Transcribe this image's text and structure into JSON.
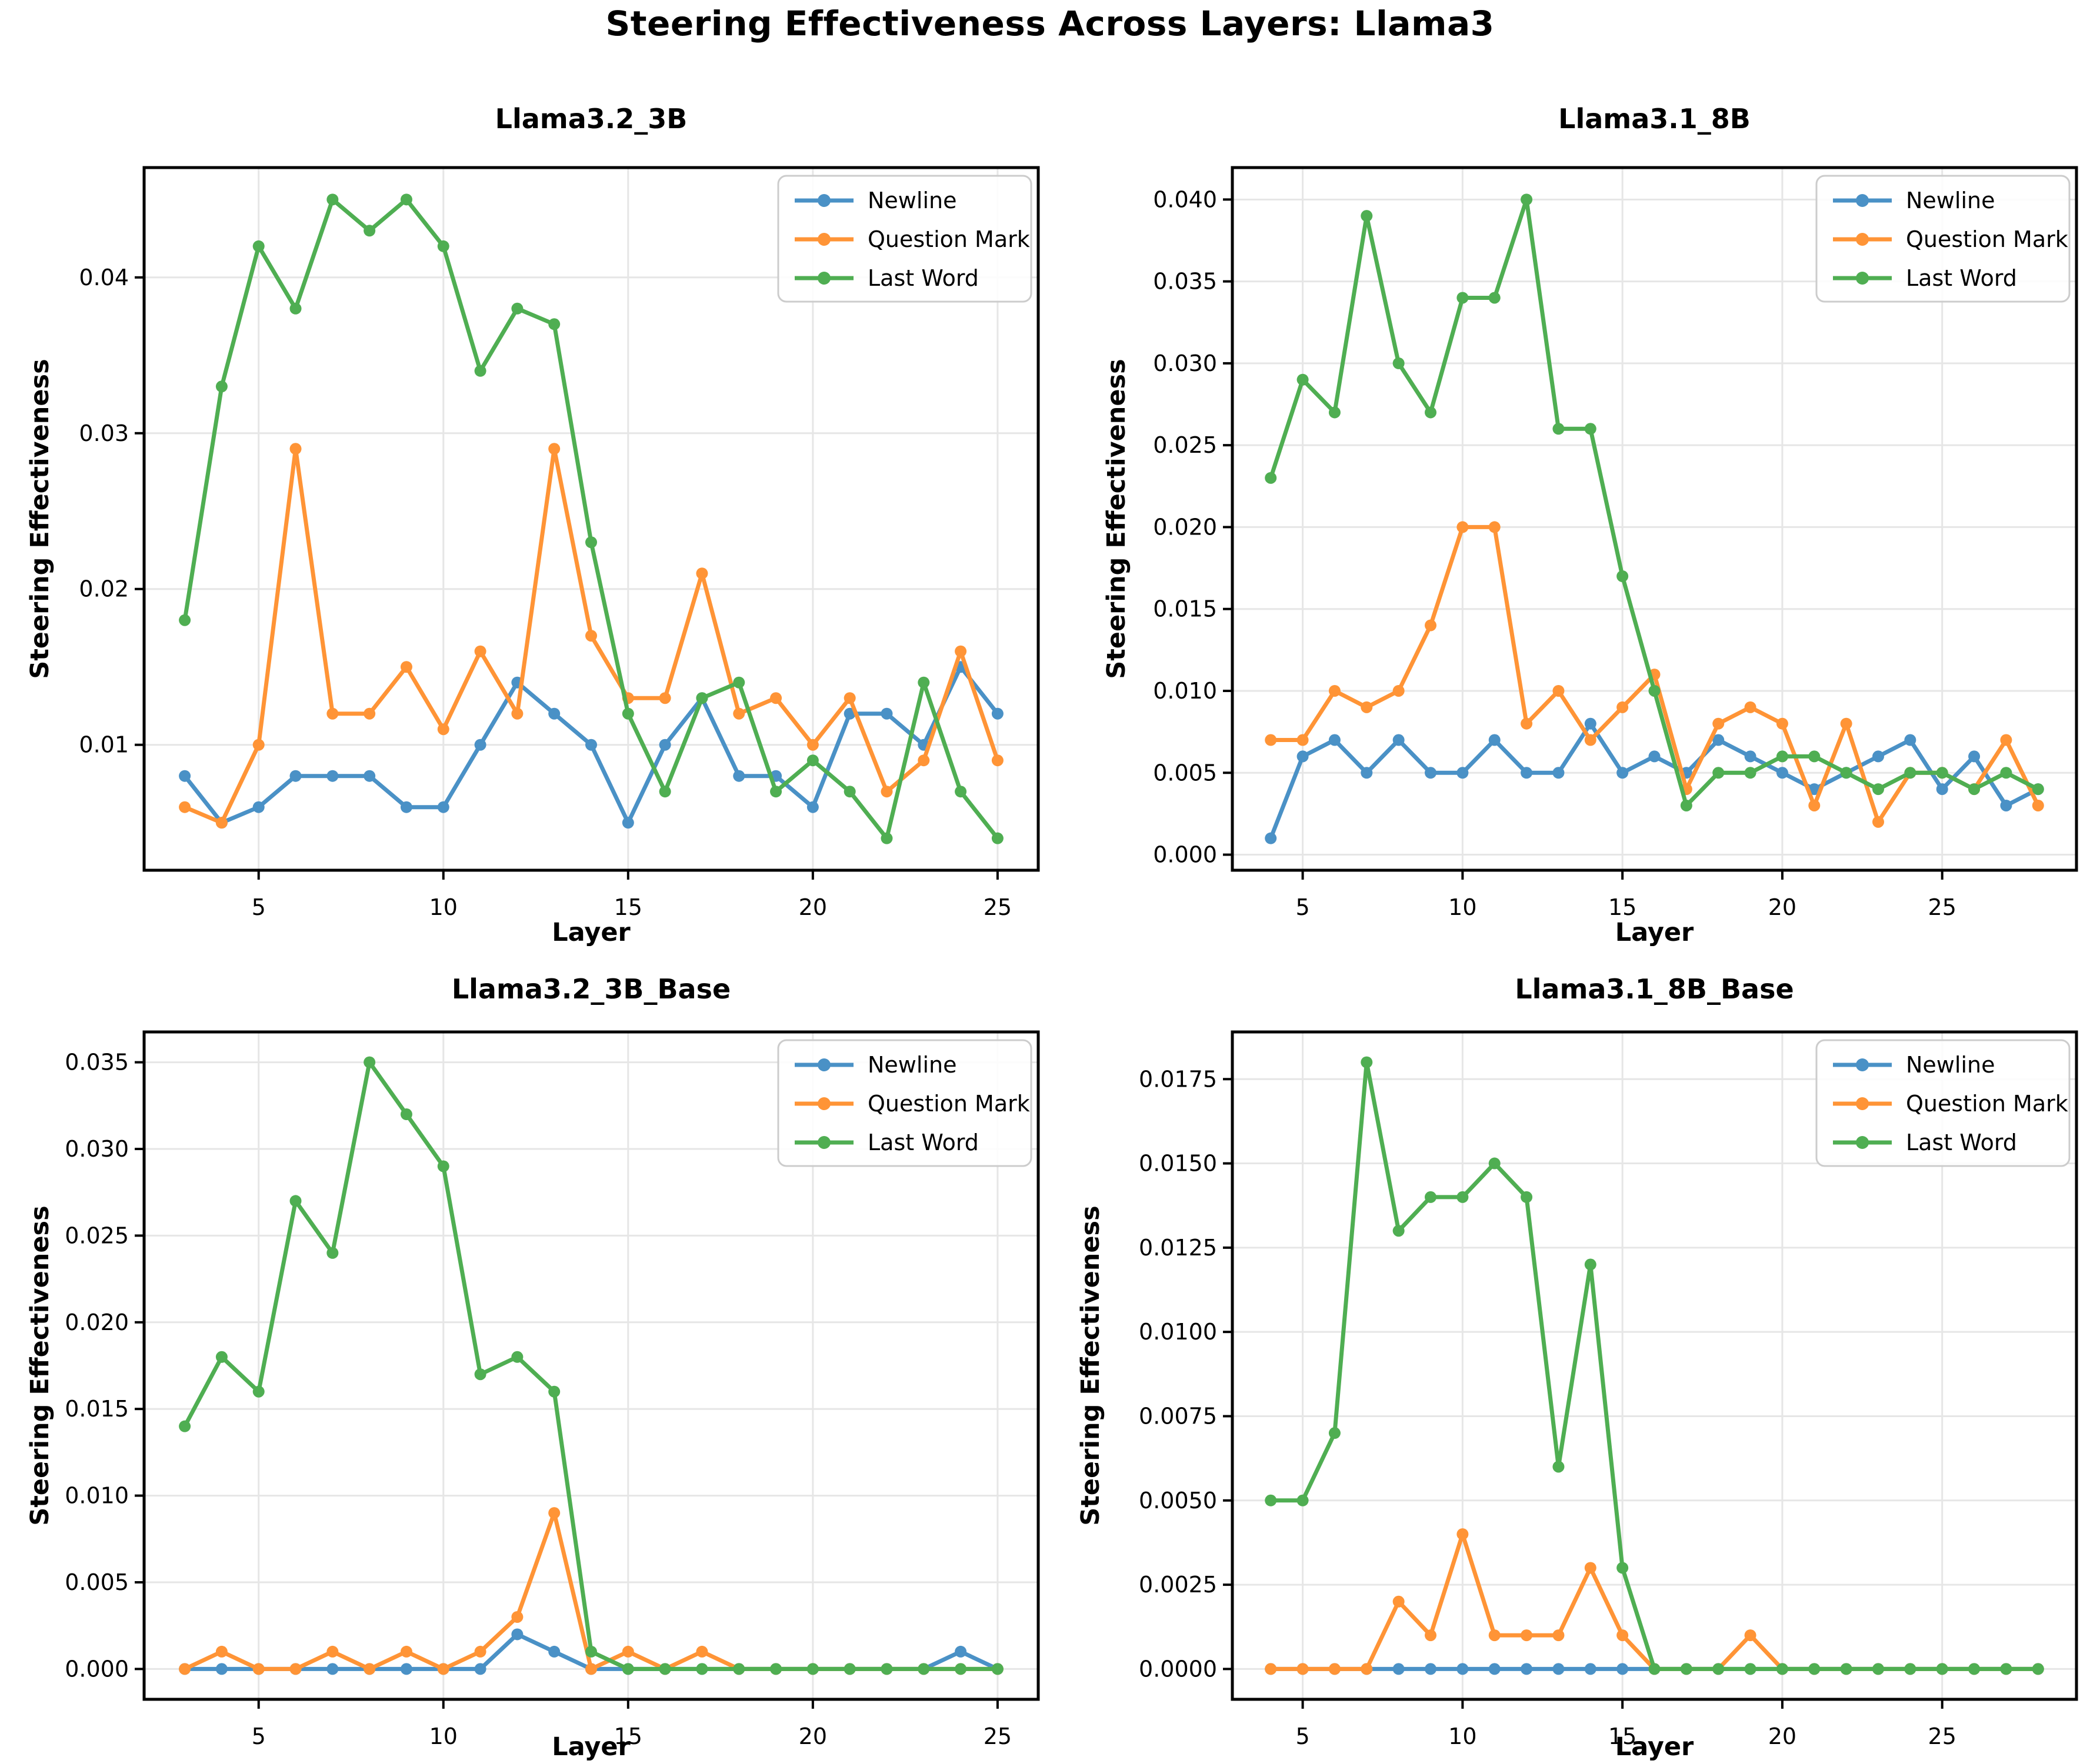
{
  "title": "Steering Effectiveness Across Layers: Llama3",
  "colors": {
    "newline": "#4a91c6",
    "question_mark": "#ff9436",
    "last_word": "#4fae52",
    "grid": "#e6e6e6",
    "spine": "#000000",
    "legend_border": "#cccccc"
  },
  "legend": {
    "position": "upper right",
    "entries": [
      "Newline",
      "Question Mark",
      "Last Word"
    ]
  },
  "chart_data": [
    {
      "type": "line",
      "title": "Llama3.2_3B",
      "xlabel": "Layer",
      "ylabel": "Steering Effectiveness",
      "grid": true,
      "x": [
        3,
        4,
        5,
        6,
        7,
        8,
        9,
        10,
        11,
        12,
        13,
        14,
        15,
        16,
        17,
        18,
        19,
        20,
        21,
        22,
        23,
        24,
        25
      ],
      "xlim": [
        1.9,
        26.1
      ],
      "ylim": [
        0.00195,
        0.04705
      ],
      "xticks": [
        {
          "value": 5,
          "label": "5"
        },
        {
          "value": 10,
          "label": "10"
        },
        {
          "value": 15,
          "label": "15"
        },
        {
          "value": 20,
          "label": "20"
        },
        {
          "value": 25,
          "label": "25"
        }
      ],
      "yticks": [
        {
          "value": 0.01,
          "label": "0.01"
        },
        {
          "value": 0.02,
          "label": "0.02"
        },
        {
          "value": 0.03,
          "label": "0.03"
        },
        {
          "value": 0.04,
          "label": "0.04"
        }
      ],
      "series": [
        {
          "name": "Newline",
          "color": "#4a91c6",
          "values": [
            0.008,
            0.005,
            0.006,
            0.008,
            0.008,
            0.008,
            0.006,
            0.006,
            0.01,
            0.014,
            0.012,
            0.01,
            0.005,
            0.01,
            0.013,
            0.008,
            0.008,
            0.006,
            0.012,
            0.012,
            0.01,
            0.015,
            0.012
          ]
        },
        {
          "name": "Question Mark",
          "color": "#ff9436",
          "values": [
            0.006,
            0.005,
            0.01,
            0.029,
            0.012,
            0.012,
            0.015,
            0.011,
            0.016,
            0.012,
            0.029,
            0.017,
            0.013,
            0.013,
            0.021,
            0.012,
            0.013,
            0.01,
            0.013,
            0.007,
            0.009,
            0.016,
            0.009
          ]
        },
        {
          "name": "Last Word",
          "color": "#4fae52",
          "values": [
            0.018,
            0.033,
            0.042,
            0.038,
            0.045,
            0.043,
            0.045,
            0.042,
            0.034,
            0.038,
            0.037,
            0.023,
            0.012,
            0.007,
            0.013,
            0.014,
            0.007,
            0.009,
            0.007,
            0.004,
            0.014,
            0.007,
            0.004
          ]
        }
      ]
    },
    {
      "type": "line",
      "title": "Llama3.1_8B",
      "xlabel": "Layer",
      "ylabel": "Steering Effectiveness",
      "grid": true,
      "x": [
        4,
        5,
        6,
        7,
        8,
        9,
        10,
        11,
        12,
        13,
        14,
        15,
        16,
        17,
        18,
        19,
        20,
        21,
        22,
        23,
        24,
        25,
        26,
        27,
        28
      ],
      "xlim": [
        2.8,
        29.2
      ],
      "ylim": [
        -0.00095,
        0.04195
      ],
      "xticks": [
        {
          "value": 5,
          "label": "5"
        },
        {
          "value": 10,
          "label": "10"
        },
        {
          "value": 15,
          "label": "15"
        },
        {
          "value": 20,
          "label": "20"
        },
        {
          "value": 25,
          "label": "25"
        }
      ],
      "yticks": [
        {
          "value": 0.0,
          "label": "0.000"
        },
        {
          "value": 0.005,
          "label": "0.005"
        },
        {
          "value": 0.01,
          "label": "0.010"
        },
        {
          "value": 0.015,
          "label": "0.015"
        },
        {
          "value": 0.02,
          "label": "0.020"
        },
        {
          "value": 0.025,
          "label": "0.025"
        },
        {
          "value": 0.03,
          "label": "0.030"
        },
        {
          "value": 0.035,
          "label": "0.035"
        },
        {
          "value": 0.04,
          "label": "0.040"
        }
      ],
      "series": [
        {
          "name": "Newline",
          "color": "#4a91c6",
          "values": [
            0.001,
            0.006,
            0.007,
            0.005,
            0.007,
            0.005,
            0.005,
            0.007,
            0.005,
            0.005,
            0.008,
            0.005,
            0.006,
            0.005,
            0.007,
            0.006,
            0.005,
            0.004,
            0.005,
            0.006,
            0.007,
            0.004,
            0.006,
            0.003,
            0.004
          ]
        },
        {
          "name": "Question Mark",
          "color": "#ff9436",
          "values": [
            0.007,
            0.007,
            0.01,
            0.009,
            0.01,
            0.014,
            0.02,
            0.02,
            0.008,
            0.01,
            0.007,
            0.009,
            0.011,
            0.004,
            0.008,
            0.009,
            0.008,
            0.003,
            0.008,
            0.002,
            0.005,
            0.005,
            0.004,
            0.007,
            0.003
          ]
        },
        {
          "name": "Last Word",
          "color": "#4fae52",
          "values": [
            0.023,
            0.029,
            0.027,
            0.039,
            0.03,
            0.027,
            0.034,
            0.034,
            0.04,
            0.026,
            0.026,
            0.017,
            0.01,
            0.003,
            0.005,
            0.005,
            0.006,
            0.006,
            0.005,
            0.004,
            0.005,
            0.005,
            0.004,
            0.005,
            0.004
          ]
        }
      ]
    },
    {
      "type": "line",
      "title": "Llama3.2_3B_Base",
      "xlabel": "Layer",
      "ylabel": "Steering Effectiveness",
      "grid": true,
      "x": [
        3,
        4,
        5,
        6,
        7,
        8,
        9,
        10,
        11,
        12,
        13,
        14,
        15,
        16,
        17,
        18,
        19,
        20,
        21,
        22,
        23,
        24,
        25
      ],
      "xlim": [
        1.9,
        26.1
      ],
      "ylim": [
        -0.00175,
        0.03675
      ],
      "xticks": [
        {
          "value": 5,
          "label": "5"
        },
        {
          "value": 10,
          "label": "10"
        },
        {
          "value": 15,
          "label": "15"
        },
        {
          "value": 20,
          "label": "20"
        },
        {
          "value": 25,
          "label": "25"
        }
      ],
      "yticks": [
        {
          "value": 0.0,
          "label": "0.000"
        },
        {
          "value": 0.005,
          "label": "0.005"
        },
        {
          "value": 0.01,
          "label": "0.010"
        },
        {
          "value": 0.015,
          "label": "0.015"
        },
        {
          "value": 0.02,
          "label": "0.020"
        },
        {
          "value": 0.025,
          "label": "0.025"
        },
        {
          "value": 0.03,
          "label": "0.030"
        },
        {
          "value": 0.035,
          "label": "0.035"
        }
      ],
      "series": [
        {
          "name": "Newline",
          "color": "#4a91c6",
          "values": [
            0.0,
            0.0,
            0.0,
            0.0,
            0.0,
            0.0,
            0.0,
            0.0,
            0.0,
            0.002,
            0.001,
            0.0,
            0.0,
            0.0,
            0.0,
            0.0,
            0.0,
            0.0,
            0.0,
            0.0,
            0.0,
            0.001,
            0.0
          ]
        },
        {
          "name": "Question Mark",
          "color": "#ff9436",
          "values": [
            0.0,
            0.001,
            0.0,
            0.0,
            0.001,
            0.0,
            0.001,
            0.0,
            0.001,
            0.003,
            0.009,
            0.0,
            0.001,
            0.0,
            0.001,
            0.0,
            0.0,
            0.0,
            0.0,
            0.0,
            0.0,
            0.0,
            0.0
          ]
        },
        {
          "name": "Last Word",
          "color": "#4fae52",
          "values": [
            0.014,
            0.018,
            0.016,
            0.027,
            0.024,
            0.035,
            0.032,
            0.029,
            0.017,
            0.018,
            0.016,
            0.001,
            0.0,
            0.0,
            0.0,
            0.0,
            0.0,
            0.0,
            0.0,
            0.0,
            0.0,
            0.0,
            0.0
          ]
        }
      ]
    },
    {
      "type": "line",
      "title": "Llama3.1_8B_Base",
      "xlabel": "Layer",
      "ylabel": "Steering Effectiveness",
      "grid": true,
      "x": [
        4,
        5,
        6,
        7,
        8,
        9,
        10,
        11,
        12,
        13,
        14,
        15,
        16,
        17,
        18,
        19,
        20,
        21,
        22,
        23,
        24,
        25,
        26,
        27,
        28
      ],
      "xlim": [
        2.8,
        29.2
      ],
      "ylim": [
        -0.0009,
        0.0189
      ],
      "xticks": [
        {
          "value": 5,
          "label": "5"
        },
        {
          "value": 10,
          "label": "10"
        },
        {
          "value": 15,
          "label": "15"
        },
        {
          "value": 20,
          "label": "20"
        },
        {
          "value": 25,
          "label": "25"
        }
      ],
      "yticks": [
        {
          "value": 0.0,
          "label": "0.0000"
        },
        {
          "value": 0.0025,
          "label": "0.0025"
        },
        {
          "value": 0.005,
          "label": "0.0050"
        },
        {
          "value": 0.0075,
          "label": "0.0075"
        },
        {
          "value": 0.01,
          "label": "0.0100"
        },
        {
          "value": 0.0125,
          "label": "0.0125"
        },
        {
          "value": 0.015,
          "label": "0.0150"
        },
        {
          "value": 0.0175,
          "label": "0.0175"
        }
      ],
      "series": [
        {
          "name": "Newline",
          "color": "#4a91c6",
          "values": [
            0.0,
            0.0,
            0.0,
            0.0,
            0.0,
            0.0,
            0.0,
            0.0,
            0.0,
            0.0,
            0.0,
            0.0,
            0.0,
            0.0,
            0.0,
            0.0,
            0.0,
            0.0,
            0.0,
            0.0,
            0.0,
            0.0,
            0.0,
            0.0,
            0.0
          ]
        },
        {
          "name": "Question Mark",
          "color": "#ff9436",
          "values": [
            0.0,
            0.0,
            0.0,
            0.0,
            0.002,
            0.001,
            0.004,
            0.001,
            0.001,
            0.001,
            0.003,
            0.001,
            0.0,
            0.0,
            0.0,
            0.001,
            0.0,
            0.0,
            0.0,
            0.0,
            0.0,
            0.0,
            0.0,
            0.0,
            0.0
          ]
        },
        {
          "name": "Last Word",
          "color": "#4fae52",
          "values": [
            0.005,
            0.005,
            0.007,
            0.018,
            0.013,
            0.014,
            0.014,
            0.015,
            0.014,
            0.006,
            0.012,
            0.003,
            0.0,
            0.0,
            0.0,
            0.0,
            0.0,
            0.0,
            0.0,
            0.0,
            0.0,
            0.0,
            0.0,
            0.0,
            0.0
          ]
        }
      ]
    }
  ]
}
